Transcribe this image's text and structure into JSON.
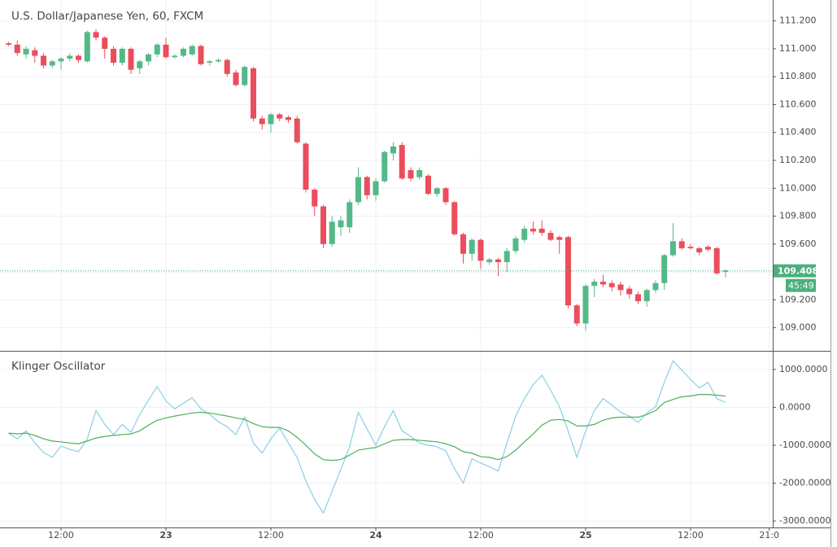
{
  "chart_data": [
    {
      "type": "candlestick",
      "title": "U.S. Dollar/Japanese Yen, 60, FXCM",
      "x": [
        6,
        7,
        8,
        9,
        10,
        11,
        12,
        13,
        14,
        15,
        16,
        17,
        18,
        19,
        20,
        21,
        22,
        23,
        24,
        25,
        26,
        27,
        28,
        29,
        30,
        31,
        32,
        33,
        34,
        35,
        36,
        37,
        38,
        39,
        40,
        41,
        42,
        43,
        44,
        45,
        46,
        47,
        48,
        49,
        50,
        51,
        52,
        53,
        54,
        55,
        56,
        57,
        58,
        59,
        60,
        61,
        62,
        63,
        64,
        65,
        66,
        67,
        68,
        69,
        70,
        71,
        72,
        73,
        74,
        75,
        76,
        77,
        78,
        79,
        80,
        81,
        82,
        83,
        84,
        85,
        86,
        87,
        88
      ],
      "series": [
        {
          "open": [
            111.04,
            111.03,
            110.96,
            110.99,
            110.95,
            110.88,
            110.91,
            110.93,
            110.95,
            110.91,
            111.12,
            111.08,
            111.0,
            110.9,
            111.0,
            110.86,
            110.91,
            110.96,
            111.03,
            110.94,
            110.95,
            110.96,
            111.02,
            110.9,
            110.91,
            110.92,
            110.83,
            110.74,
            110.86,
            110.5,
            110.46,
            110.53,
            110.51,
            110.5,
            110.32,
            109.99,
            109.87,
            109.6,
            109.72,
            109.72,
            109.9,
            110.08,
            109.95,
            110.05,
            110.25,
            110.31,
            110.13,
            110.08,
            110.09,
            109.96,
            110.0,
            109.9,
            109.67,
            109.53,
            109.63,
            109.47,
            109.49,
            109.47,
            109.55,
            109.63,
            109.71,
            109.71,
            109.68,
            109.65,
            109.65,
            109.16,
            109.03,
            109.3,
            109.33,
            109.32,
            109.31,
            109.28,
            109.24,
            109.19,
            109.27,
            109.32,
            109.52,
            109.62,
            109.58,
            109.57,
            109.58,
            109.57,
            109.4
          ],
          "high": [
            111.05,
            111.06,
            111.02,
            111.01,
            110.97,
            110.92,
            110.94,
            110.97,
            110.96,
            111.13,
            111.14,
            111.09,
            111.02,
            111.01,
            111.01,
            110.92,
            110.97,
            111.04,
            111.08,
            110.96,
            111.01,
            111.03,
            111.03,
            110.92,
            110.93,
            110.93,
            110.85,
            110.88,
            110.87,
            110.52,
            110.54,
            110.54,
            110.52,
            110.52,
            110.33,
            110.0,
            109.88,
            109.8,
            109.8,
            109.92,
            110.15,
            110.09,
            110.07,
            110.27,
            110.33,
            110.33,
            110.15,
            110.15,
            110.1,
            110.01,
            110.01,
            109.91,
            109.68,
            109.64,
            109.64,
            109.5,
            109.5,
            109.57,
            109.66,
            109.73,
            109.76,
            109.77,
            109.7,
            109.66,
            109.66,
            109.17,
            109.31,
            109.35,
            109.38,
            109.34,
            109.33,
            109.3,
            109.26,
            109.28,
            109.34,
            109.53,
            109.75,
            109.64,
            109.6,
            109.58,
            109.59,
            109.58,
            109.42
          ],
          "low": [
            111.02,
            110.95,
            110.93,
            110.9,
            110.86,
            110.86,
            110.85,
            110.91,
            110.9,
            110.9,
            111.06,
            110.93,
            110.88,
            110.88,
            110.82,
            110.82,
            110.88,
            110.94,
            110.93,
            110.93,
            110.94,
            110.95,
            110.88,
            110.88,
            110.9,
            110.8,
            110.73,
            110.73,
            110.48,
            110.42,
            110.4,
            110.48,
            110.47,
            110.32,
            109.97,
            109.8,
            109.57,
            109.58,
            109.66,
            109.68,
            109.88,
            109.92,
            109.91,
            110.04,
            110.2,
            110.06,
            110.05,
            110.06,
            109.95,
            109.94,
            109.88,
            109.66,
            109.46,
            109.48,
            109.42,
            109.45,
            109.37,
            109.4,
            109.53,
            109.61,
            109.67,
            109.66,
            109.62,
            109.53,
            109.14,
            109.01,
            108.98,
            109.22,
            109.29,
            109.26,
            109.23,
            109.21,
            109.17,
            109.15,
            109.25,
            109.27,
            109.51,
            109.56,
            109.56,
            109.52,
            109.55,
            109.38,
            109.36
          ],
          "close": [
            111.03,
            110.97,
            111.0,
            110.95,
            110.88,
            110.91,
            110.93,
            110.95,
            110.92,
            111.12,
            111.08,
            111.0,
            110.9,
            111.0,
            110.85,
            110.91,
            110.96,
            111.03,
            110.94,
            110.95,
            111.0,
            111.02,
            110.89,
            110.91,
            110.92,
            110.82,
            110.74,
            110.87,
            110.5,
            110.46,
            110.53,
            110.5,
            110.49,
            110.33,
            109.99,
            109.87,
            109.6,
            109.76,
            109.77,
            109.9,
            110.08,
            109.95,
            110.05,
            110.26,
            110.3,
            110.07,
            110.07,
            110.13,
            109.96,
            110.0,
            109.9,
            109.67,
            109.53,
            109.63,
            109.48,
            109.49,
            109.47,
            109.55,
            109.64,
            109.71,
            109.69,
            109.68,
            109.63,
            109.63,
            109.16,
            109.03,
            109.3,
            109.33,
            109.31,
            109.29,
            109.27,
            109.24,
            109.19,
            109.27,
            109.32,
            109.52,
            109.62,
            109.57,
            109.57,
            109.54,
            109.56,
            109.39,
            109.41
          ]
        }
      ],
      "up_color": "#53b987",
      "down_color": "#eb4d5c",
      "xlim": [
        5.02,
        93.4
      ],
      "ylim": [
        108.84,
        111.35
      ],
      "yticks": [
        {
          "value": 109,
          "label": "109.000"
        },
        {
          "value": 109.2,
          "label": "109.200"
        },
        {
          "value": 109.4,
          "label": "109.400"
        },
        {
          "value": 109.6,
          "label": "109.600"
        },
        {
          "value": 109.8,
          "label": "109.800"
        },
        {
          "value": 110,
          "label": "110.000"
        },
        {
          "value": 110.2,
          "label": "110.200"
        },
        {
          "value": 110.4,
          "label": "110.400"
        },
        {
          "value": 110.6,
          "label": "110.600"
        },
        {
          "value": 110.8,
          "label": "110.800"
        },
        {
          "value": 111,
          "label": "111.000"
        },
        {
          "value": 111.2,
          "label": "111.200"
        }
      ],
      "grid": true,
      "last_price": {
        "value": 109.408,
        "label": "109.408"
      },
      "last_price_color": "#4caf7e",
      "countdown": "45:49"
    },
    {
      "type": "line",
      "title": "Klinger Oscillator",
      "x": [
        6,
        7,
        8,
        9,
        10,
        11,
        12,
        13,
        14,
        15,
        16,
        17,
        18,
        19,
        20,
        21,
        22,
        23,
        24,
        25,
        26,
        27,
        28,
        29,
        30,
        31,
        32,
        33,
        34,
        35,
        36,
        37,
        38,
        39,
        40,
        41,
        42,
        43,
        44,
        45,
        46,
        47,
        48,
        49,
        50,
        51,
        52,
        53,
        54,
        55,
        56,
        57,
        58,
        59,
        60,
        61,
        62,
        63,
        64,
        65,
        66,
        67,
        68,
        69,
        70,
        71,
        72,
        73,
        74,
        75,
        76,
        77,
        78,
        79,
        80,
        81,
        82,
        83,
        84,
        85,
        86,
        87,
        88
      ],
      "series": [
        {
          "color": "#87cfe6",
          "values": [
            -680,
            -830,
            -620,
            -940,
            -1190,
            -1320,
            -1020,
            -1110,
            -1170,
            -830,
            -85,
            -450,
            -720,
            -450,
            -660,
            -190,
            190,
            550,
            170,
            -40,
            110,
            255,
            -40,
            -190,
            -380,
            -510,
            -720,
            -255,
            -940,
            -1210,
            -830,
            -550,
            -940,
            -1320,
            -1940,
            -2430,
            -2790,
            -2210,
            -1640,
            -1040,
            -130,
            -570,
            -1000,
            -510,
            -85,
            -620,
            -770,
            -940,
            -1000,
            -1040,
            -1150,
            -1620,
            -2000,
            -1360,
            -1470,
            -1570,
            -1680,
            -940,
            -230,
            230,
            600,
            850,
            450,
            20,
            -620,
            -1320,
            -620,
            -85,
            230,
            60,
            -130,
            -230,
            -400,
            -150,
            20,
            660,
            1230,
            980,
            740,
            510,
            660,
            230,
            130
          ]
        },
        {
          "color": "#4eae5b",
          "values": [
            -680,
            -700,
            -680,
            -740,
            -830,
            -890,
            -910,
            -940,
            -960,
            -890,
            -810,
            -770,
            -740,
            -720,
            -700,
            -620,
            -470,
            -340,
            -280,
            -230,
            -190,
            -150,
            -130,
            -150,
            -190,
            -230,
            -280,
            -320,
            -430,
            -510,
            -530,
            -530,
            -620,
            -790,
            -1000,
            -1230,
            -1380,
            -1400,
            -1380,
            -1260,
            -1130,
            -1090,
            -1060,
            -960,
            -870,
            -850,
            -850,
            -870,
            -890,
            -910,
            -960,
            -1040,
            -1170,
            -1210,
            -1300,
            -1320,
            -1380,
            -1300,
            -1130,
            -910,
            -700,
            -470,
            -340,
            -320,
            -360,
            -490,
            -490,
            -450,
            -340,
            -280,
            -260,
            -260,
            -260,
            -190,
            -85,
            130,
            210,
            280,
            300,
            340,
            340,
            320,
            300
          ]
        }
      ],
      "xlim": [
        5.02,
        93.4
      ],
      "ylim": [
        -3170,
        1470
      ],
      "yticks": [
        {
          "value": -3000,
          "label": "-3000.0000"
        },
        {
          "value": -2000,
          "label": "-2000.0000"
        },
        {
          "value": -1000,
          "label": "-1000.0000"
        },
        {
          "value": 0,
          "label": "0.0000"
        },
        {
          "value": 1000,
          "label": "1000.0000"
        }
      ],
      "xticks": [
        {
          "value": 12,
          "label": "12:00"
        },
        {
          "value": 24,
          "label": "23"
        },
        {
          "value": 36,
          "label": "12:00"
        },
        {
          "value": 48,
          "label": "24"
        },
        {
          "value": 60,
          "label": "12:00"
        },
        {
          "value": 72,
          "label": "25"
        },
        {
          "value": 84,
          "label": "12:00"
        },
        {
          "value": 93,
          "label": "21:0"
        }
      ],
      "grid": true
    }
  ]
}
